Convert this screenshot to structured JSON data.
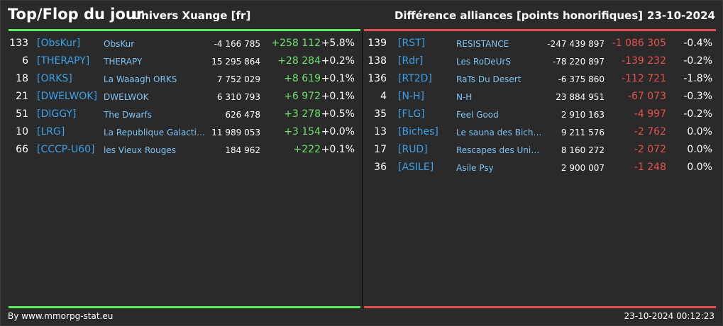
{
  "header": {
    "title": "Top/Flop du jour",
    "universe": "Univers Xuange [fr]",
    "subtitle": "Différence alliances [points honorifiques]",
    "date": "23-10-2024"
  },
  "colors": {
    "top": "#5eea5e",
    "flop": "#e05050",
    "tag": "#3aa0e8",
    "name": "#7ec3f2"
  },
  "top": [
    {
      "rank": "133",
      "tag": "[ObsKur]",
      "name": "ObsKur",
      "points": "-4 166 785",
      "diff": "+258 112",
      "pct": "+5.8%"
    },
    {
      "rank": "6",
      "tag": "[THERAPY]",
      "name": "THERAPY",
      "points": "15 295 864",
      "diff": "+28 284",
      "pct": "+0.2%"
    },
    {
      "rank": "18",
      "tag": "[ORKS]",
      "name": "La Waaagh ORKS",
      "points": "7 752 029",
      "diff": "+8 619",
      "pct": "+0.1%"
    },
    {
      "rank": "21",
      "tag": "[DWELWOK]",
      "name": "DWELWOK",
      "points": "6 310 793",
      "diff": "+6 972",
      "pct": "+0.1%"
    },
    {
      "rank": "51",
      "tag": "[DIGGY]",
      "name": "The Dwarfs",
      "points": "626 478",
      "diff": "+3 278",
      "pct": "+0.5%"
    },
    {
      "rank": "10",
      "tag": "[LRG]",
      "name": "La Republique Galactique",
      "points": "11 989 053",
      "diff": "+3 154",
      "pct": "+0.0%"
    },
    {
      "rank": "66",
      "tag": "[CCCP-U60]",
      "name": "les Vieux Rouges",
      "points": "184 962",
      "diff": "+222",
      "pct": "+0.1%"
    }
  ],
  "flop": [
    {
      "rank": "139",
      "tag": "[RST]",
      "name": "RESISTANCE",
      "points": "-247 439 897",
      "diff": "-1 086 305",
      "pct": "-0.4%"
    },
    {
      "rank": "138",
      "tag": "[Rdr]",
      "name": "Les RoDeUrS",
      "points": "-78 220 897",
      "diff": "-139 232",
      "pct": "-0.2%"
    },
    {
      "rank": "136",
      "tag": "[RT2D]",
      "name": "RaTs Du Desert",
      "points": "-6 375 860",
      "diff": "-112 721",
      "pct": "-1.8%"
    },
    {
      "rank": "4",
      "tag": "[N-H]",
      "name": "N-H",
      "points": "23 884 951",
      "diff": "-67 073",
      "pct": "-0.3%"
    },
    {
      "rank": "35",
      "tag": "[FLG]",
      "name": "Feel Good",
      "points": "2 910 163",
      "diff": "-4 997",
      "pct": "-0.2%"
    },
    {
      "rank": "13",
      "tag": "[Biches]",
      "name": "Le sauna des Biche...",
      "points": "9 211 576",
      "diff": "-2 762",
      "pct": "0.0%"
    },
    {
      "rank": "17",
      "tag": "[RUD]",
      "name": "Rescapes des Univ...",
      "points": "8 160 272",
      "diff": "-2 072",
      "pct": "0.0%"
    },
    {
      "rank": "36",
      "tag": "[ASILE]",
      "name": "Asile Psy",
      "points": "2 900 007",
      "diff": "-1 248",
      "pct": "0.0%"
    }
  ],
  "footer": {
    "credit": "By www.mmorpg-stat.eu",
    "timestamp": "23-10-2024 00:12:23"
  }
}
